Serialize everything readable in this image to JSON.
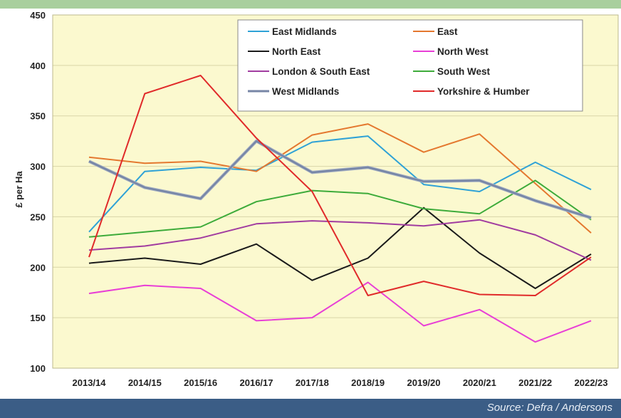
{
  "source_text": "Source: Defra / Andersons",
  "chart_data": {
    "type": "line",
    "title": "",
    "xlabel": "",
    "ylabel": "£ per Ha",
    "ylim": [
      100,
      450
    ],
    "yticks": [
      100,
      150,
      200,
      250,
      300,
      350,
      400,
      450
    ],
    "grid": "horizontal",
    "legend_position": "top-right",
    "background_color": "#fbf9cf",
    "categories": [
      "2013/14",
      "2014/15",
      "2015/16",
      "2016/17",
      "2017/18",
      "2018/19",
      "2019/20",
      "2020/21",
      "2021/22",
      "2022/23"
    ],
    "series": [
      {
        "name": "East Midlands",
        "color": "#2fa2d6",
        "values": [
          235,
          295,
          299,
          296,
          324,
          330,
          282,
          275,
          304,
          277
        ]
      },
      {
        "name": "East",
        "color": "#e4782f",
        "values": [
          309,
          303,
          305,
          295,
          331,
          342,
          314,
          332,
          283,
          234
        ]
      },
      {
        "name": "North East",
        "color": "#1a1a1a",
        "values": [
          204,
          209,
          203,
          223,
          187,
          209,
          259,
          214,
          179,
          213
        ]
      },
      {
        "name": "North West",
        "color": "#e83fd6",
        "values": [
          174,
          182,
          179,
          147,
          150,
          185,
          142,
          158,
          126,
          147
        ]
      },
      {
        "name": "London & South East",
        "color": "#a13ca0",
        "values": [
          217,
          221,
          229,
          243,
          246,
          244,
          241,
          247,
          232,
          207
        ]
      },
      {
        "name": "South West",
        "color": "#3dab3a",
        "values": [
          230,
          235,
          240,
          265,
          276,
          273,
          258,
          253,
          286,
          247
        ]
      },
      {
        "name": "West Midlands",
        "color": "#7786a6",
        "values": [
          305,
          279,
          268,
          325,
          294,
          299,
          285,
          286,
          266,
          249
        ]
      },
      {
        "name": "Yorkshire & Humber",
        "color": "#e02a2a",
        "values": [
          210,
          372,
          390,
          328,
          275,
          172,
          186,
          173,
          172,
          210
        ]
      }
    ]
  }
}
